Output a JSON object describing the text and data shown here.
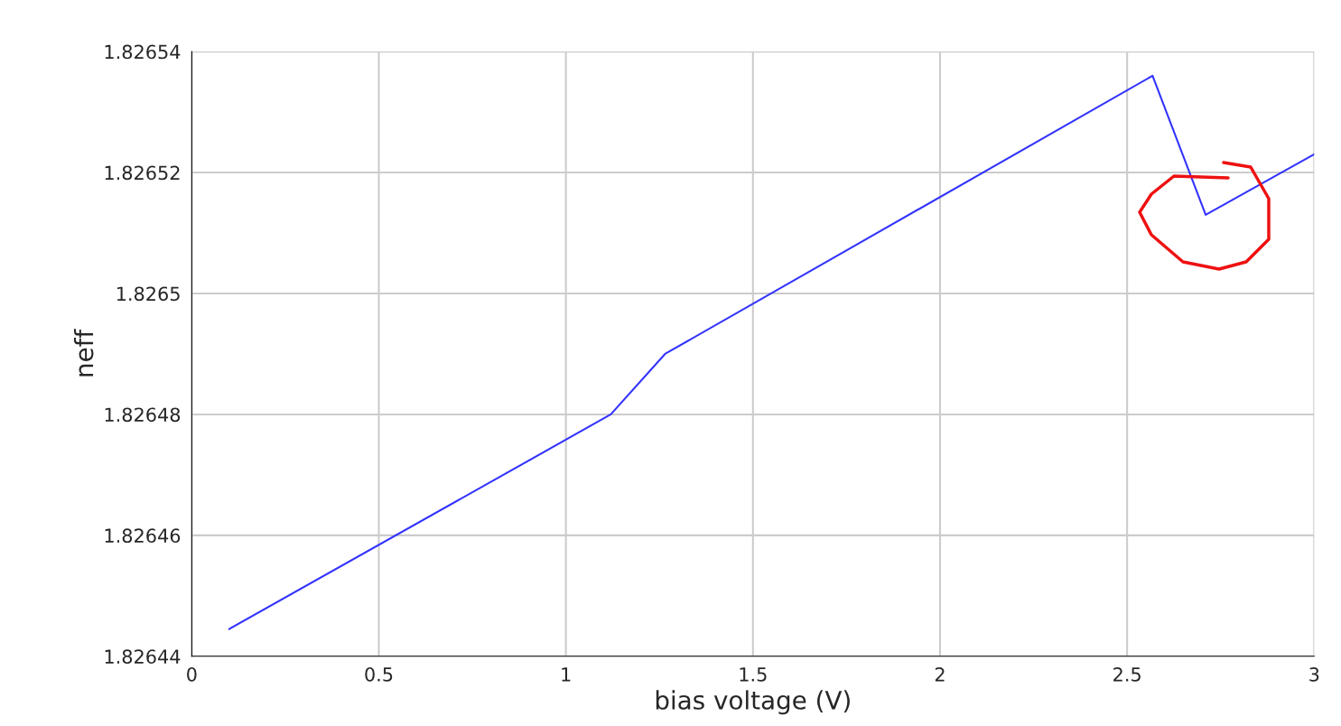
{
  "chart_data": {
    "type": "line",
    "xlabel": "bias voltage (V)",
    "ylabel": "neff",
    "x": [
      0.1,
      1.12,
      1.265,
      2.568,
      2.71,
      3.0
    ],
    "series": [
      {
        "color": "#3333ff",
        "values": [
          1.8264445,
          1.82648,
          1.82649,
          1.826536,
          1.826513,
          1.826523
        ]
      }
    ],
    "xlim": [
      0,
      3
    ],
    "xticks": [
      0,
      0.5,
      1,
      1.5,
      2,
      2.5,
      3
    ],
    "ylim": [
      1.82644,
      1.82654
    ],
    "yticks": [
      1.82644,
      1.82646,
      1.82648,
      1.8265,
      1.82652,
      1.82654
    ],
    "grid": true,
    "marker": "none",
    "line_style": "solid"
  }
}
